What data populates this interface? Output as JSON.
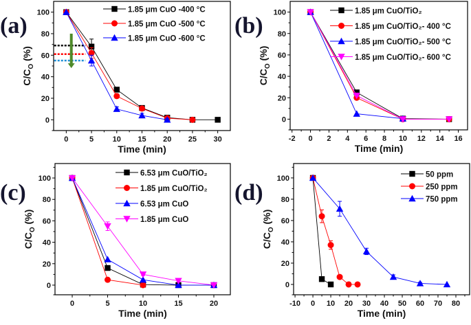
{
  "chart_data": [
    {
      "type": "line",
      "panel_label": "(a)",
      "xlabel": "Time (min)",
      "ylabel": {
        "main": "C/C",
        "sub": "O",
        "rest": " (%)"
      },
      "xlim": [
        -2.5,
        32.5
      ],
      "ylim": [
        -10,
        110
      ],
      "xticks": [
        0,
        5,
        10,
        15,
        20,
        25,
        30
      ],
      "yticks": [
        0,
        20,
        40,
        60,
        80,
        100
      ],
      "legend_position": "top-right",
      "series": [
        {
          "name": "1.85 μm CuO -400 °C",
          "color": "#000000",
          "marker": "square",
          "x": [
            0,
            5,
            10,
            15,
            20,
            25,
            30
          ],
          "y": [
            100,
            68,
            28,
            11,
            2,
            0,
            0
          ],
          "err": [
            0,
            7,
            2,
            1,
            0,
            0,
            0
          ]
        },
        {
          "name": "1.85 μm CuO -500 °C",
          "color": "#ff0000",
          "marker": "circle",
          "x": [
            0,
            5,
            10,
            15,
            20,
            25
          ],
          "y": [
            100,
            62,
            22,
            10.5,
            1.5,
            0
          ],
          "err": [
            0,
            5,
            2,
            1,
            0,
            0
          ]
        },
        {
          "name": "1.85 μm CuO -600 °C",
          "color": "#0000ff",
          "marker": "triangle-up",
          "x": [
            0,
            5,
            10,
            15,
            20
          ],
          "y": [
            100,
            55,
            10,
            4,
            0
          ],
          "err": [
            0,
            5,
            2,
            2,
            1
          ]
        }
      ],
      "annotations": {
        "dotted_levels": [
          {
            "y": 69,
            "color": "#000000"
          },
          {
            "y": 61,
            "color": "#ff0000"
          },
          {
            "y": 55,
            "color": "#1f8fd6"
          }
        ],
        "arrow": {
          "x": 1,
          "from": 80,
          "to": 48,
          "color": "#4f8a2a"
        }
      }
    },
    {
      "type": "line",
      "panel_label": "(b)",
      "xlabel": "Time (min)",
      "ylabel": {
        "main": "C/C",
        "sub": "O",
        "rest": " (%)"
      },
      "xlim": [
        -2.2,
        17
      ],
      "ylim": [
        -10,
        110
      ],
      "xticks": [
        -2,
        0,
        2,
        4,
        6,
        8,
        10,
        12,
        14,
        16
      ],
      "yticks": [
        0,
        20,
        40,
        60,
        80,
        100
      ],
      "legend_position": "top-right",
      "series": [
        {
          "name": "1.85 μm CuO/TiO₂",
          "color": "#000000",
          "marker": "square",
          "x": [
            0,
            5,
            10,
            15
          ],
          "y": [
            100,
            25,
            0.5,
            0
          ]
        },
        {
          "name": "1.85 μm CuO/TiO₂- 400 °C",
          "color": "#ff0000",
          "marker": "circle",
          "x": [
            0,
            5,
            10,
            15
          ],
          "y": [
            100,
            20,
            0,
            0
          ]
        },
        {
          "name": "1.85 μm CuO/TiO₂- 500 °C",
          "color": "#0000ff",
          "marker": "triangle-up",
          "x": [
            0,
            5,
            10
          ],
          "y": [
            100,
            5,
            0.5
          ]
        },
        {
          "name": "1.85 μm CuO/TiO₂- 600 °C",
          "color": "#ff00ff",
          "marker": "triangle-down",
          "x": [
            0,
            5,
            10,
            15
          ],
          "y": [
            100,
            22,
            0,
            0
          ]
        }
      ]
    },
    {
      "type": "line",
      "panel_label": "(c)",
      "xlabel": "Time (min)",
      "ylabel": {
        "main": "C/C",
        "sub": "O",
        "rest": " (%)"
      },
      "xlim": [
        -2.43,
        22.33
      ],
      "ylim": [
        -9,
        113.5
      ],
      "xticks": [
        0,
        5,
        10,
        15,
        20
      ],
      "yticks": [
        0,
        20,
        40,
        60,
        80,
        100
      ],
      "legend_position": "top-right",
      "series": [
        {
          "name": "6.53 μm CuO/TiO₂",
          "color": "#000000",
          "marker": "square",
          "x": [
            0,
            5,
            10,
            15,
            20
          ],
          "y": [
            100,
            16,
            0.5,
            0,
            0
          ]
        },
        {
          "name": "1.85 μm CuO/TiO₂",
          "color": "#ff0000",
          "marker": "circle",
          "x": [
            0,
            5,
            10
          ],
          "y": [
            100,
            5,
            0
          ]
        },
        {
          "name": "6.53 μm CuO",
          "color": "#0000ff",
          "marker": "triangle-up",
          "x": [
            0,
            5,
            10,
            15,
            20
          ],
          "y": [
            100,
            24,
            5,
            0,
            0
          ]
        },
        {
          "name": "1.85 μm CuO",
          "color": "#ff00ff",
          "marker": "triangle-down",
          "x": [
            0,
            5,
            10,
            15,
            20
          ],
          "y": [
            100,
            55,
            10,
            4,
            0
          ],
          "err": [
            0,
            4,
            1,
            1,
            0
          ]
        }
      ]
    },
    {
      "type": "line",
      "panel_label": "(d)",
      "xlabel": "Time (min)",
      "ylabel": {
        "main": "C/C",
        "sub": "O",
        "rest": " (%)"
      },
      "xlim": [
        -10.8,
        87.7
      ],
      "ylim": [
        -9.7,
        113.5
      ],
      "xticks": [
        -10,
        0,
        10,
        20,
        30,
        40,
        50,
        60,
        70,
        80
      ],
      "yticks": [
        0,
        20,
        40,
        60,
        80,
        100
      ],
      "legend_position": "top-right",
      "series": [
        {
          "name": "50 ppm",
          "color": "#000000",
          "marker": "square",
          "x": [
            0,
            5,
            10
          ],
          "y": [
            100,
            5,
            0
          ]
        },
        {
          "name": "250 ppm",
          "color": "#ff0000",
          "marker": "circle",
          "x": [
            0,
            5,
            10,
            15,
            20,
            25
          ],
          "y": [
            100,
            64,
            37,
            7,
            0,
            0
          ],
          "err": [
            0,
            6,
            4,
            1,
            0,
            0
          ]
        },
        {
          "name": "750 ppm",
          "color": "#0000ff",
          "marker": "triangle-up",
          "x": [
            0,
            15,
            30,
            45,
            60,
            75
          ],
          "y": [
            100,
            71,
            31,
            7,
            1,
            0
          ],
          "err": [
            0,
            7,
            3,
            2,
            1,
            0
          ]
        }
      ]
    }
  ]
}
